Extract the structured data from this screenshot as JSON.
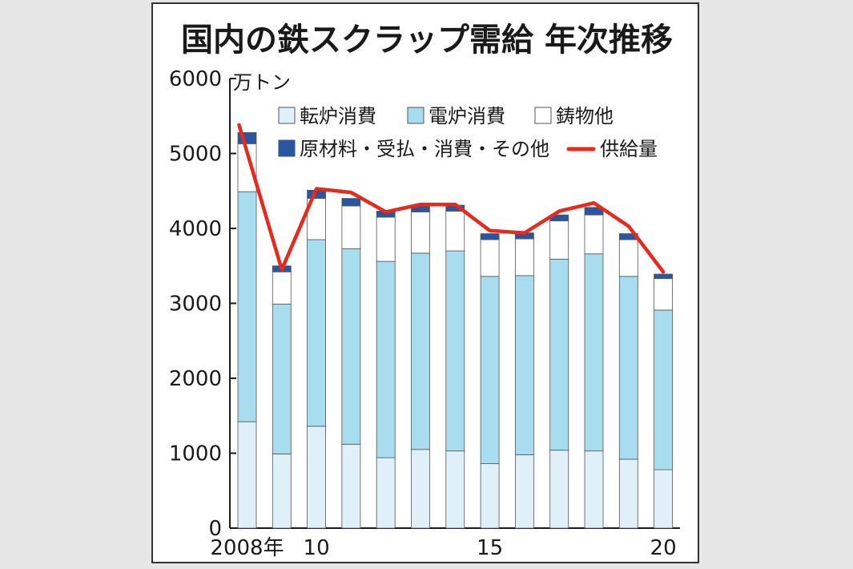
{
  "chart_data": {
    "type": "bar",
    "title": "国内の鉄スクラップ需給 年次推移",
    "unit": "万トン",
    "ylim": [
      0,
      6000
    ],
    "y_ticks": [
      "0",
      "1000",
      "2000",
      "3000",
      "4000",
      "5000",
      "6000"
    ],
    "categories": [
      "2008",
      "2009",
      "2010",
      "2011",
      "2012",
      "2013",
      "2014",
      "2015",
      "2016",
      "2017",
      "2018",
      "2019",
      "2020"
    ],
    "x_tick_labels": [
      "2008年",
      "",
      "10",
      "",
      "",
      "",
      "",
      "15",
      "",
      "",
      "",
      "",
      "20"
    ],
    "series": [
      {
        "name": "転炉消費",
        "color": "#dff0f9",
        "values": [
          1420,
          990,
          1360,
          1120,
          940,
          1050,
          1030,
          860,
          980,
          1040,
          1030,
          920,
          780
        ]
      },
      {
        "name": "電炉消費",
        "color": "#a8dcef",
        "values": [
          3070,
          2000,
          2490,
          2610,
          2620,
          2620,
          2670,
          2500,
          2390,
          2550,
          2630,
          2440,
          2130
        ]
      },
      {
        "name": "鋳物他",
        "color": "#ffffff",
        "values": [
          640,
          430,
          550,
          570,
          590,
          550,
          530,
          490,
          490,
          510,
          520,
          490,
          420
        ]
      },
      {
        "name": "原材料・受払・消費・その他",
        "color": "#2a56a0",
        "values": [
          150,
          80,
          110,
          100,
          80,
          80,
          80,
          80,
          80,
          80,
          100,
          80,
          60
        ]
      }
    ],
    "line": {
      "name": "供給量",
      "color": "#e8291c",
      "values": [
        5380,
        3450,
        4530,
        4480,
        4220,
        4320,
        4320,
        3970,
        3940,
        4230,
        4340,
        4030,
        3420
      ]
    },
    "legend": [
      [
        "転炉消費",
        "電炉消費",
        "鋳物他"
      ],
      [
        "原材料・受払・消費・その他",
        "供給量"
      ]
    ],
    "legend_position": "top-right",
    "grid": false
  }
}
